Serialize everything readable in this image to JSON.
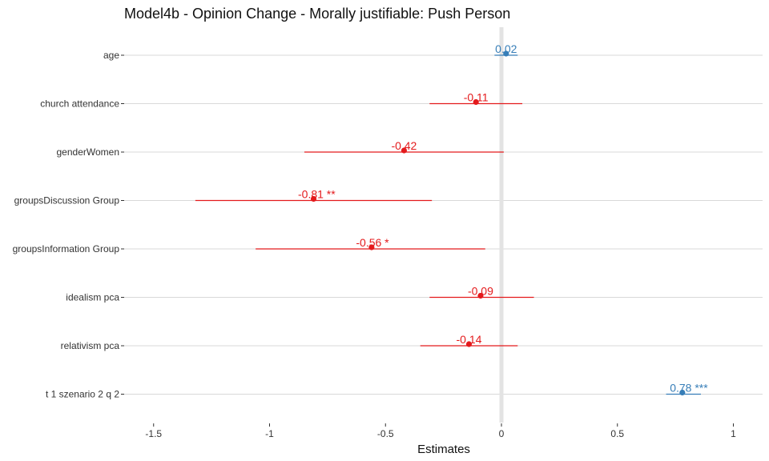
{
  "chart_data": {
    "type": "forest",
    "title": "Model4b - Opinion Change - Morally justifiable: Push Person",
    "xlabel": "Estimates",
    "ylabel": "",
    "xlim": [
      -1.6,
      1.13
    ],
    "x_ticks": [
      -1.5,
      -1,
      -0.5,
      0,
      0.5,
      1
    ],
    "x_tick_labels": [
      "-1.5",
      "-1",
      "-0.5",
      "0",
      "0.5",
      "1"
    ],
    "grid": true,
    "reference_line": 0,
    "colors": {
      "positive": "#377EB8",
      "negative": "#E41A1C",
      "refline": "#E3E3E3",
      "grid": "#D9D9D9"
    },
    "terms": [
      {
        "label": "age",
        "estimate": 0.02,
        "ci_low": -0.03,
        "ci_high": 0.07,
        "sig": "",
        "text": "0.02"
      },
      {
        "label": "church attendance",
        "estimate": -0.11,
        "ci_low": -0.31,
        "ci_high": 0.09,
        "sig": "",
        "text": "-0.11"
      },
      {
        "label": "genderWomen",
        "estimate": -0.42,
        "ci_low": -0.85,
        "ci_high": 0.01,
        "sig": "",
        "text": "-0.42"
      },
      {
        "label": "groupsDiscussion Group",
        "estimate": -0.81,
        "ci_low": -1.32,
        "ci_high": -0.3,
        "sig": "**",
        "text": "-0.81 **"
      },
      {
        "label": "groupsInformation Group",
        "estimate": -0.56,
        "ci_low": -1.06,
        "ci_high": -0.07,
        "sig": "*",
        "text": "-0.56 *"
      },
      {
        "label": "idealism pca",
        "estimate": -0.09,
        "ci_low": -0.31,
        "ci_high": 0.14,
        "sig": "",
        "text": "-0.09"
      },
      {
        "label": "relativism pca",
        "estimate": -0.14,
        "ci_low": -0.35,
        "ci_high": 0.07,
        "sig": "",
        "text": "-0.14"
      },
      {
        "label": "t 1 szenario 2 q 2",
        "estimate": 0.78,
        "ci_low": 0.71,
        "ci_high": 0.86,
        "sig": "***",
        "text": "0.78 ***"
      }
    ]
  }
}
